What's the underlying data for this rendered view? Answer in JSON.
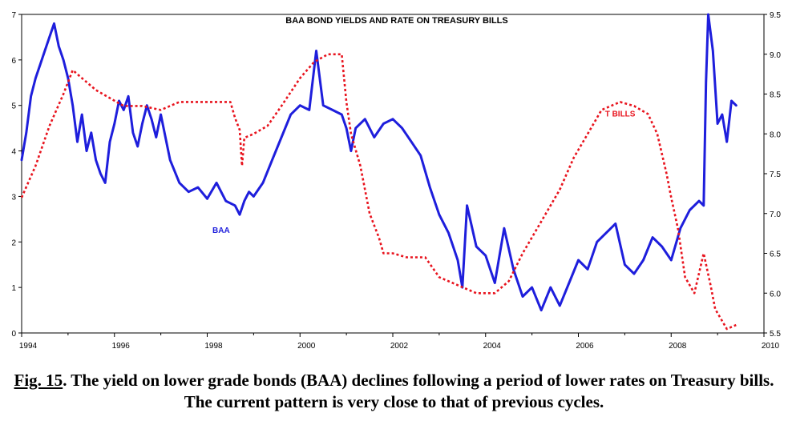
{
  "caption": {
    "label": "Fig. 15",
    "text": ". The yield on lower grade bonds (BAA) declines following a period of lower rates on Treasury bills. The current pattern is very close to that of previous cycles."
  },
  "chart_data": {
    "type": "line",
    "title": "BAA BOND YIELDS AND RATE ON TREASURY BILLS",
    "xlabel": "",
    "ylabel": "",
    "xlim": [
      1994,
      2010
    ],
    "ylim_left": [
      0,
      7
    ],
    "ylim_right": [
      5.5,
      9.5
    ],
    "x_ticks": [
      "1994",
      "1996",
      "1998",
      "2000",
      "2002",
      "2004",
      "2006",
      "2008",
      "2010"
    ],
    "y_left_ticks": [
      "0",
      "1",
      "2",
      "3",
      "4",
      "5",
      "6",
      "7"
    ],
    "y_right_ticks": [
      "5.5",
      "6.0",
      "6.5",
      "7.0",
      "7.5",
      "8.0",
      "8.5",
      "9.0",
      "9.5"
    ],
    "grid": false,
    "series": [
      {
        "name": "BAA",
        "axis": "left",
        "color": "#1e1edc",
        "style": "solid",
        "label_position": [
          1998.3,
          2.2
        ],
        "x": [
          1994.0,
          1994.1,
          1994.2,
          1994.3,
          1994.4,
          1994.5,
          1994.6,
          1994.7,
          1994.8,
          1994.9,
          1995.0,
          1995.1,
          1995.2,
          1995.3,
          1995.4,
          1995.5,
          1995.6,
          1995.7,
          1995.8,
          1995.9,
          1996.0,
          1996.1,
          1996.2,
          1996.3,
          1996.4,
          1996.5,
          1996.6,
          1996.7,
          1996.8,
          1996.9,
          1997.0,
          1997.2,
          1997.4,
          1997.6,
          1997.8,
          1998.0,
          1998.2,
          1998.4,
          1998.6,
          1998.7,
          1998.8,
          1998.9,
          1999.0,
          1999.2,
          1999.4,
          1999.6,
          1999.8,
          2000.0,
          2000.2,
          2000.35,
          2000.4,
          2000.5,
          2000.7,
          2000.9,
          2001.0,
          2001.1,
          2001.2,
          2001.4,
          2001.6,
          2001.8,
          2002.0,
          2002.2,
          2002.4,
          2002.6,
          2002.8,
          2003.0,
          2003.2,
          2003.4,
          2003.5,
          2003.6,
          2003.8,
          2004.0,
          2004.2,
          2004.4,
          2004.6,
          2004.8,
          2005.0,
          2005.2,
          2005.4,
          2005.6,
          2005.8,
          2006.0,
          2006.2,
          2006.4,
          2006.6,
          2006.8,
          2007.0,
          2007.2,
          2007.4,
          2007.6,
          2007.8,
          2008.0,
          2008.2,
          2008.4,
          2008.6,
          2008.7,
          2008.75,
          2008.8,
          2008.9,
          2009.0,
          2009.1,
          2009.2,
          2009.3,
          2009.4
        ],
        "y": [
          3.8,
          4.4,
          5.2,
          5.6,
          5.9,
          6.2,
          6.5,
          6.8,
          6.3,
          6.0,
          5.6,
          5.0,
          4.2,
          4.8,
          4.0,
          4.4,
          3.8,
          3.5,
          3.3,
          4.2,
          4.6,
          5.1,
          4.9,
          5.2,
          4.4,
          4.1,
          4.6,
          5.0,
          4.7,
          4.3,
          4.8,
          3.8,
          3.3,
          3.1,
          3.2,
          2.95,
          3.3,
          2.9,
          2.8,
          2.6,
          2.9,
          3.1,
          3.0,
          3.3,
          3.8,
          4.3,
          4.8,
          5.0,
          4.9,
          6.2,
          5.8,
          5.0,
          4.9,
          4.8,
          4.5,
          4.0,
          4.5,
          4.7,
          4.3,
          4.6,
          4.7,
          4.5,
          4.2,
          3.9,
          3.2,
          2.6,
          2.2,
          1.6,
          1.0,
          2.8,
          1.9,
          1.7,
          1.1,
          2.3,
          1.4,
          0.8,
          1.0,
          0.5,
          1.0,
          0.6,
          1.1,
          1.6,
          1.4,
          2.0,
          2.2,
          2.4,
          1.5,
          1.3,
          1.6,
          2.1,
          1.9,
          1.6,
          2.3,
          2.7,
          2.9,
          2.8,
          5.5,
          7.0,
          6.2,
          4.6,
          4.8,
          4.2,
          5.1,
          5.0
        ]
      },
      {
        "name": "T BILLS",
        "axis": "right",
        "color": "#e8141e",
        "style": "dotted",
        "label_position": [
          2006.9,
          8.22
        ],
        "x": [
          1994.0,
          1994.3,
          1994.6,
          1994.9,
          1995.1,
          1995.3,
          1995.6,
          1995.9,
          1996.2,
          1996.6,
          1997.0,
          1997.4,
          1997.8,
          1998.2,
          1998.5,
          1998.6,
          1998.7,
          1998.75,
          1998.8,
          1999.0,
          1999.3,
          1999.6,
          2000.0,
          2000.3,
          2000.6,
          2000.9,
          2001.0,
          2001.1,
          2001.3,
          2001.5,
          2001.7,
          2001.8,
          2002.0,
          2002.3,
          2002.7,
          2003.0,
          2003.4,
          2003.8,
          2004.2,
          2004.5,
          2004.8,
          2005.2,
          2005.6,
          2005.9,
          2006.2,
          2006.5,
          2006.9,
          2007.2,
          2007.5,
          2007.7,
          2007.9,
          2008.0,
          2008.15,
          2008.3,
          2008.5,
          2008.7,
          2008.85,
          2008.95,
          2009.2,
          2009.4
        ],
        "y": [
          7.2,
          7.6,
          8.1,
          8.5,
          8.8,
          8.7,
          8.55,
          8.45,
          8.35,
          8.35,
          8.3,
          8.4,
          8.4,
          8.4,
          8.4,
          8.2,
          8.05,
          7.6,
          7.95,
          8.0,
          8.1,
          8.35,
          8.7,
          8.9,
          9.0,
          9.0,
          8.4,
          8.0,
          7.6,
          7.0,
          6.7,
          6.5,
          6.5,
          6.45,
          6.45,
          6.2,
          6.1,
          6.0,
          6.0,
          6.15,
          6.5,
          6.9,
          7.3,
          7.7,
          8.0,
          8.3,
          8.4,
          8.35,
          8.25,
          8.0,
          7.5,
          7.2,
          6.8,
          6.2,
          6.0,
          6.5,
          6.1,
          5.8,
          5.55,
          5.6
        ]
      }
    ]
  }
}
